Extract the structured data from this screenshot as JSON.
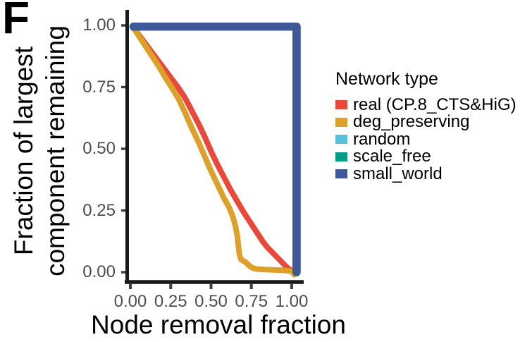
{
  "figure": {
    "panel_label": "F",
    "background_color": "#ffffff"
  },
  "colors": {
    "axis_line": "#1a1a1a",
    "tick_mark": "#404040",
    "tick_label": "#4d4d4d",
    "title_text": "#000000"
  },
  "chart_data": {
    "type": "line",
    "title": "",
    "xlabel": "Node removal fraction",
    "ylabel": "Fraction of largest\ncomponent remaining",
    "xlim": [
      0,
      1
    ],
    "ylim": [
      0,
      1
    ],
    "grid": false,
    "x_tick_labels": [
      "0.00",
      "0.25",
      "0.50",
      "0.75",
      "1.00"
    ],
    "y_tick_labels": [
      "0.00",
      "0.25",
      "0.50",
      "0.75",
      "1.00"
    ],
    "legend": {
      "title": "Network type",
      "position": "right"
    },
    "series": [
      {
        "name": "real (CP.8_CTS&HiG)",
        "color": "#E8493B",
        "linewidth": 8,
        "points": [
          [
            0.02,
            0.99
          ],
          [
            0.06,
            0.955
          ],
          [
            0.1,
            0.92
          ],
          [
            0.14,
            0.885
          ],
          [
            0.18,
            0.85
          ],
          [
            0.22,
            0.815
          ],
          [
            0.26,
            0.78
          ],
          [
            0.3,
            0.745
          ],
          [
            0.34,
            0.705
          ],
          [
            0.38,
            0.655
          ],
          [
            0.42,
            0.605
          ],
          [
            0.46,
            0.55
          ],
          [
            0.5,
            0.49
          ],
          [
            0.54,
            0.435
          ],
          [
            0.58,
            0.385
          ],
          [
            0.62,
            0.335
          ],
          [
            0.66,
            0.29
          ],
          [
            0.7,
            0.245
          ],
          [
            0.73,
            0.215
          ],
          [
            0.76,
            0.185
          ],
          [
            0.79,
            0.155
          ],
          [
            0.82,
            0.125
          ],
          [
            0.85,
            0.1
          ],
          [
            0.88,
            0.08
          ],
          [
            0.91,
            0.06
          ],
          [
            0.94,
            0.04
          ],
          [
            0.97,
            0.02
          ],
          [
            1.0,
            0.005
          ]
        ]
      },
      {
        "name": "deg_preserving",
        "color": "#DDA02B",
        "linewidth": 8,
        "points": [
          [
            0.02,
            0.99
          ],
          [
            0.06,
            0.95
          ],
          [
            0.1,
            0.91
          ],
          [
            0.14,
            0.87
          ],
          [
            0.18,
            0.83
          ],
          [
            0.22,
            0.785
          ],
          [
            0.26,
            0.745
          ],
          [
            0.3,
            0.7
          ],
          [
            0.34,
            0.645
          ],
          [
            0.38,
            0.585
          ],
          [
            0.42,
            0.53
          ],
          [
            0.46,
            0.47
          ],
          [
            0.5,
            0.41
          ],
          [
            0.54,
            0.355
          ],
          [
            0.58,
            0.3
          ],
          [
            0.61,
            0.265
          ],
          [
            0.635,
            0.225
          ],
          [
            0.65,
            0.19
          ],
          [
            0.662,
            0.15
          ],
          [
            0.669,
            0.11
          ],
          [
            0.675,
            0.075
          ],
          [
            0.685,
            0.052
          ],
          [
            0.7,
            0.046
          ],
          [
            0.715,
            0.04
          ],
          [
            0.725,
            0.034
          ],
          [
            0.74,
            0.025
          ],
          [
            0.755,
            0.018
          ],
          [
            0.78,
            0.013
          ],
          [
            0.82,
            0.011
          ],
          [
            0.86,
            0.01
          ],
          [
            0.9,
            0.009
          ],
          [
            0.94,
            0.008
          ],
          [
            0.98,
            0.006
          ],
          [
            1.005,
            0.002
          ],
          [
            1.015,
            -0.01
          ]
        ]
      },
      {
        "name": "random",
        "color": "#58C1DF",
        "linewidth": 11.5,
        "points": [
          [
            0.02,
            0.995
          ],
          [
            1.03,
            0.995
          ],
          [
            1.03,
            0.0
          ]
        ]
      },
      {
        "name": "scale_free",
        "color": "#009C86",
        "linewidth": 11.5,
        "points": [
          [
            0.02,
            0.995
          ],
          [
            1.03,
            0.995
          ],
          [
            1.03,
            0.0
          ]
        ]
      },
      {
        "name": "small_world",
        "color": "#3F5898",
        "linewidth": 11.5,
        "points": [
          [
            0.02,
            0.995
          ],
          [
            1.03,
            0.995
          ],
          [
            1.03,
            0.0
          ]
        ]
      }
    ]
  }
}
